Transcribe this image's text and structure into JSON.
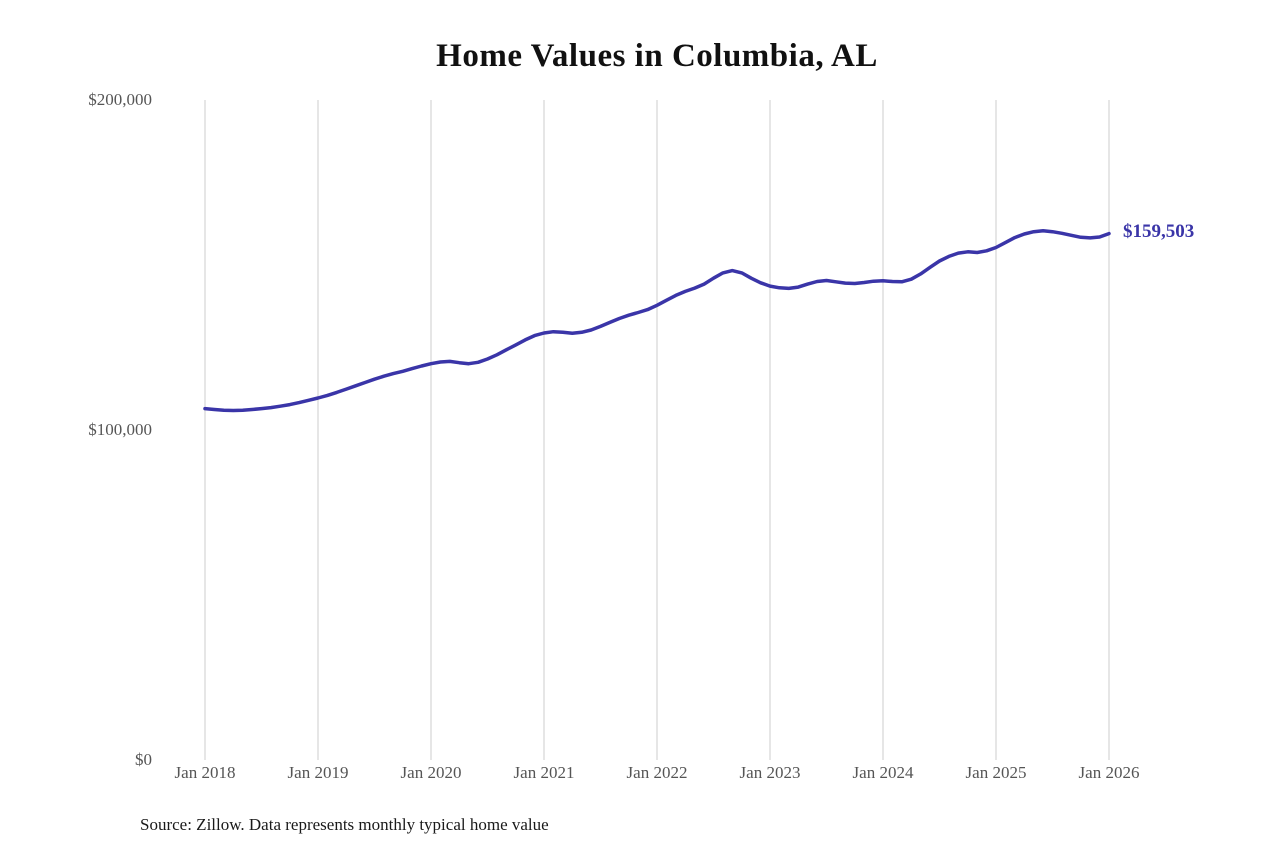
{
  "source_note": "Source: Zillow. Data represents monthly typical home value",
  "chart_data": {
    "type": "line",
    "title": "Home Values in Columbia, AL",
    "series_name": "Monthly typical home value",
    "x_start": "Jan 2018",
    "x_interval": "monthly",
    "x_tick_labels": [
      "Jan 2018",
      "Jan 2019",
      "Jan 2020",
      "Jan 2021",
      "Jan 2022",
      "Jan 2023",
      "Jan 2024",
      "Jan 2025",
      "Jan 2026"
    ],
    "y_tick_labels": [
      "$0",
      "$100,000",
      "$200,000"
    ],
    "ylim": [
      0,
      200000
    ],
    "grid": "vertical-only",
    "line_color": "#3a35a8",
    "grid_color": "#cccccc",
    "end_label": "$159,503",
    "end_value": 159503,
    "values": [
      106500,
      106200,
      106000,
      105900,
      106000,
      106200,
      106500,
      106800,
      107200,
      107700,
      108300,
      109000,
      109700,
      110500,
      111400,
      112400,
      113400,
      114400,
      115400,
      116300,
      117100,
      117800,
      118600,
      119400,
      120100,
      120600,
      120800,
      120400,
      120100,
      120500,
      121500,
      122800,
      124300,
      125800,
      127300,
      128600,
      129400,
      129800,
      129600,
      129300,
      129600,
      130300,
      131400,
      132600,
      133800,
      134800,
      135600,
      136500,
      137800,
      139300,
      140800,
      142000,
      143000,
      144200,
      146000,
      147600,
      148300,
      147600,
      146000,
      144600,
      143600,
      143100,
      142900,
      143300,
      144200,
      145000,
      145300,
      144900,
      144500,
      144400,
      144700,
      145100,
      145200,
      145000,
      144900,
      145700,
      147300,
      149300,
      151200,
      152600,
      153600,
      154000,
      153800,
      154300,
      155300,
      156800,
      158300,
      159400,
      160100,
      160400,
      160100,
      159600,
      159000,
      158400,
      158200,
      158500,
      159503
    ]
  }
}
